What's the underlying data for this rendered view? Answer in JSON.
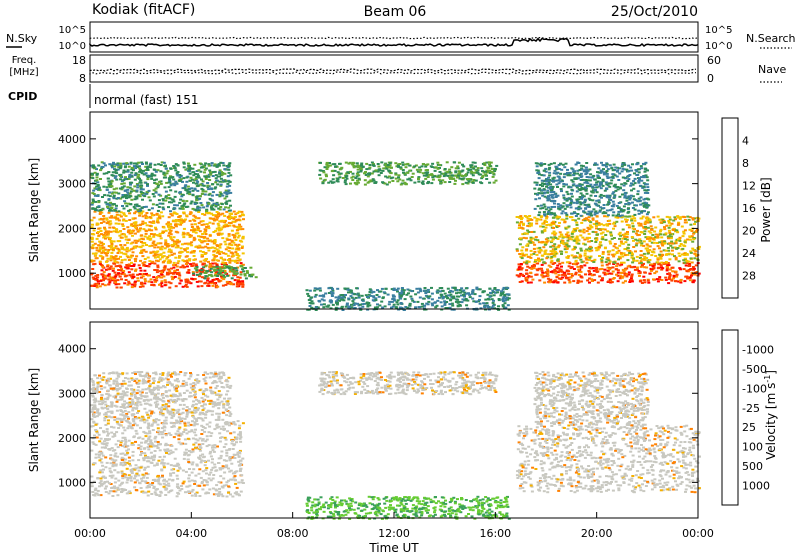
{
  "header": {
    "site": "Kodiak (fitACF)",
    "beam": "Beam 06",
    "date": "25/Oct/2010"
  },
  "noise_panel": {
    "left_label": "N.Sky",
    "right_label": "N.Search",
    "left_ticks": [
      "10^5",
      "10^0"
    ],
    "right_ticks": [
      "10^5",
      "10^0"
    ]
  },
  "freq_panel": {
    "left_label_line1": "Freq.",
    "left_label_line2": "[MHz]",
    "left_ticks": [
      "18",
      "8"
    ],
    "right_label": "Nave",
    "right_ticks": [
      "60",
      "0"
    ]
  },
  "cpid": {
    "label": "CPID",
    "text": "normal (fast) 151"
  },
  "colors": {
    "power": [
      "#0000ff",
      "#2244cc",
      "#3a7fa0",
      "#2e8b57",
      "#66aa33",
      "#f5c400",
      "#ff8c00",
      "#ff4000",
      "#ff0000"
    ],
    "velocity": [
      "#2040b0",
      "#2f7f8f",
      "#3aa05a",
      "#66cc33",
      "#c8c8c0",
      "#c8c8c0",
      "#f5b000",
      "#ff8000",
      "#ff4000",
      "#ff0000"
    ]
  },
  "chart_data": [
    {
      "type": "heatmap",
      "panel": "power",
      "xlabel": "",
      "ylabel": "Slant Range [km]",
      "xlim": [
        0,
        24
      ],
      "ylim": [
        200,
        4600
      ],
      "yticks": [
        "1000",
        "2000",
        "3000",
        "4000"
      ],
      "colorbar": {
        "label": "Power [dB]",
        "ticks": [
          "4",
          "8",
          "12",
          "16",
          "20",
          "24",
          "28"
        ],
        "range": [
          0,
          32
        ]
      },
      "scatter_regions": [
        {
          "t0": 0.0,
          "t1": 6.0,
          "r0": 700,
          "r1": 1250,
          "power": 28
        },
        {
          "t0": 0.0,
          "t1": 6.0,
          "r0": 1250,
          "r1": 2400,
          "power": 22
        },
        {
          "t0": 0.0,
          "t1": 5.5,
          "r0": 2400,
          "r1": 3500,
          "power": 12
        },
        {
          "t0": 4.0,
          "t1": 6.5,
          "r0": 900,
          "r1": 1200,
          "power": 14
        },
        {
          "t0": 8.5,
          "t1": 16.5,
          "r0": 200,
          "r1": 700,
          "power": 10
        },
        {
          "t0": 9.0,
          "t1": 16.0,
          "r0": 3000,
          "r1": 3500,
          "power": 14
        },
        {
          "t0": 16.8,
          "t1": 24.0,
          "r0": 800,
          "r1": 1250,
          "power": 28
        },
        {
          "t0": 16.8,
          "t1": 24.0,
          "r0": 1250,
          "r1": 2300,
          "power": 20
        },
        {
          "t0": 17.5,
          "t1": 22.0,
          "r0": 2300,
          "r1": 3500,
          "power": 10
        }
      ]
    },
    {
      "type": "heatmap",
      "panel": "velocity",
      "xlabel": "Time UT",
      "ylabel": "Slant Range [km]",
      "xlim": [
        0,
        24
      ],
      "ylim": [
        200,
        4600
      ],
      "xticks": [
        "00:00",
        "04:00",
        "08:00",
        "12:00",
        "16:00",
        "20:00",
        "00:00"
      ],
      "yticks": [
        "1000",
        "2000",
        "3000",
        "4000"
      ],
      "colorbar": {
        "label": "Velocity [m s",
        "label_sup": "-1",
        "label_end": "]",
        "ticks": [
          "1000",
          "500",
          "100",
          "25",
          "-25",
          "-100",
          "-500",
          "-1000"
        ]
      },
      "scatter_regions": [
        {
          "t0": 0.0,
          "t1": 6.0,
          "r0": 700,
          "r1": 2400,
          "velocity": 0
        },
        {
          "t0": 0.0,
          "t1": 5.5,
          "r0": 2400,
          "r1": 3500,
          "velocity": 0
        },
        {
          "t0": 8.5,
          "t1": 16.5,
          "r0": 200,
          "r1": 700,
          "velocity": 80
        },
        {
          "t0": 9.0,
          "t1": 16.0,
          "r0": 3000,
          "r1": 3500,
          "velocity": 0
        },
        {
          "t0": 16.8,
          "t1": 24.0,
          "r0": 800,
          "r1": 2300,
          "velocity": 0
        },
        {
          "t0": 17.5,
          "t1": 22.0,
          "r0": 2300,
          "r1": 3500,
          "velocity": 0
        }
      ]
    }
  ]
}
